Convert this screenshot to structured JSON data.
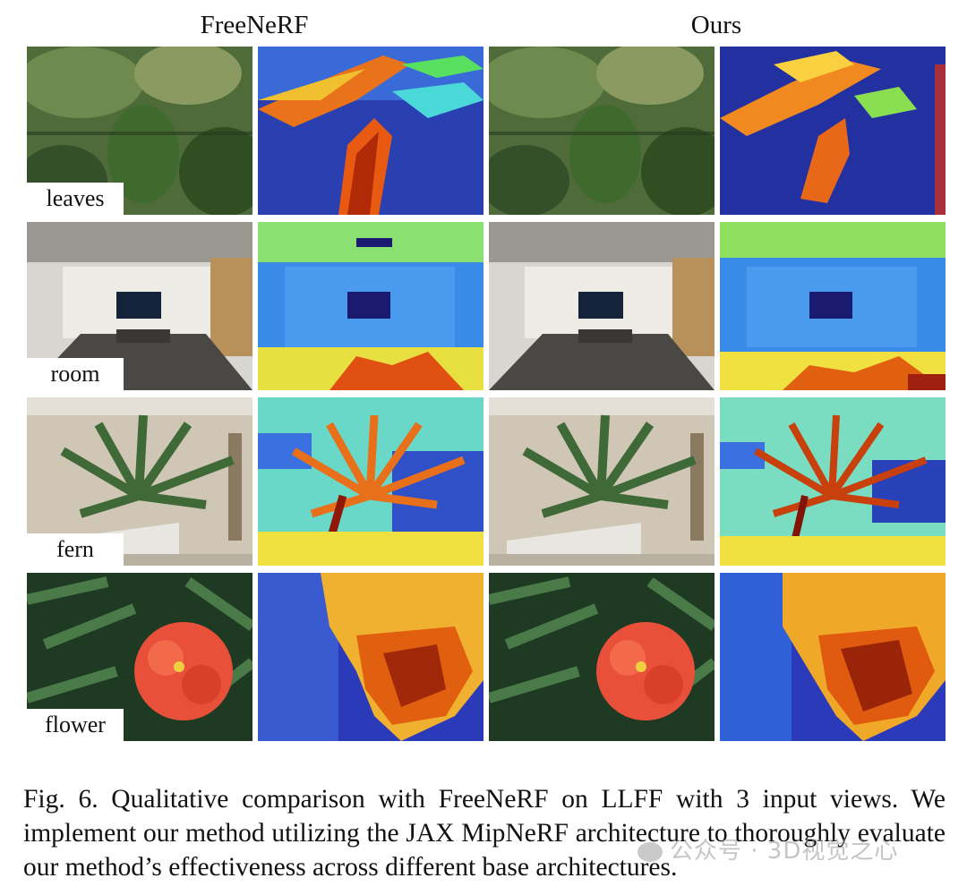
{
  "figure": {
    "column_headers": [
      "FreeNeRF",
      "Ours"
    ],
    "rows": [
      {
        "scene": "leaves"
      },
      {
        "scene": "room"
      },
      {
        "scene": "fern"
      },
      {
        "scene": "flower"
      }
    ]
  },
  "caption": {
    "text": "Fig. 6.  Qualitative comparison with FreeNeRF on LLFF with 3 input views. We implement our method utilizing the JAX MipNeRF architecture to thoroughly evaluate our method’s effectiveness across different base architectures."
  },
  "watermark": {
    "text": "公众号 · 3D视觉之心"
  }
}
